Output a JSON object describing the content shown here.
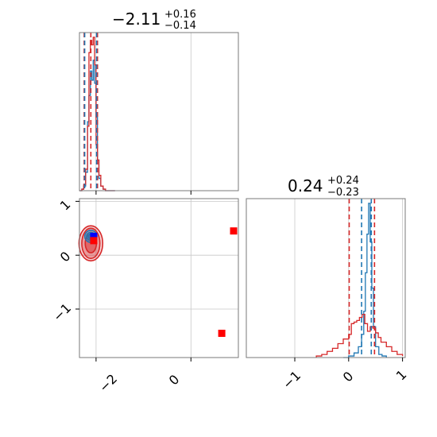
{
  "chart_data": [
    {
      "type": "corner-histogram",
      "panel": "param1-marginal",
      "title": {
        "median": "−2.11",
        "plus": "+0.16",
        "minus": "−0.14"
      },
      "xlim": [
        -2.35,
        1.0
      ],
      "grid": true,
      "series": [
        {
          "color": "#1f77b4",
          "style": "step",
          "x": [
            -2.35,
            -2.3,
            -2.26,
            -2.22,
            -2.18,
            -2.15,
            -2.12,
            -2.09,
            -2.06,
            -2.03,
            -2.0,
            -1.97,
            -1.94,
            -1.9,
            -1.85,
            -1.8,
            -1.6
          ],
          "density": [
            0,
            0.01,
            0.03,
            0.12,
            0.45,
            0.62,
            0.78,
            0.72,
            0.85,
            0.7,
            0.48,
            0.2,
            0.08,
            0.03,
            0.01,
            0,
            0
          ]
        },
        {
          "color": "#d62728",
          "style": "step",
          "x": [
            -2.35,
            -2.3,
            -2.26,
            -2.22,
            -2.18,
            -2.15,
            -2.12,
            -2.09,
            -2.06,
            -2.03,
            -2.0,
            -1.97,
            -1.94,
            -1.9,
            -1.85,
            -1.8,
            -1.6
          ],
          "density": [
            0,
            0.01,
            0.04,
            0.14,
            0.42,
            0.9,
            0.98,
            0.95,
            1.0,
            0.82,
            0.3,
            0.2,
            0.1,
            0.03,
            0.01,
            0,
            0
          ]
        }
      ],
      "quantile_lines": [
        {
          "x": -2.25,
          "color": "#d62728"
        },
        {
          "x": -2.11,
          "color": "#d62728"
        },
        {
          "x": -1.97,
          "color": "#d62728"
        },
        {
          "x": -2.24,
          "color": "#1f77b4"
        },
        {
          "x": -1.99,
          "color": "#1f77b4"
        }
      ]
    },
    {
      "type": "corner-2d-contour",
      "panel": "param1-vs-param2",
      "xlim": [
        -2.35,
        1.0
      ],
      "ylim": [
        -1.9,
        1.05
      ],
      "grid": true,
      "xticks": [
        "−2",
        "0"
      ],
      "xtick_values": [
        -2,
        0
      ],
      "yticks": [
        "1",
        "0",
        "−1"
      ],
      "ytick_values": [
        1,
        0,
        -1
      ],
      "contour_sets": [
        {
          "color": "#d62728",
          "cx": -2.11,
          "cy": 0.22,
          "rx": [
            0.55,
            0.42,
            0.26
          ],
          "ry": [
            0.52,
            0.45,
            0.28
          ],
          "fill_alpha": [
            0.35,
            0.6,
            0.85
          ]
        },
        {
          "color": "#1f77b4",
          "cx": -2.11,
          "cy": 0.35,
          "rx": [
            0.28,
            0.2,
            0.12
          ],
          "ry": [
            0.18,
            0.12,
            0.07
          ],
          "fill_alpha": [
            0.4,
            0.6,
            0.85
          ]
        }
      ],
      "points": [
        {
          "x": -2.05,
          "y": 0.35,
          "color": "#0000ff",
          "marker": "square"
        },
        {
          "x": -2.05,
          "y": 0.27,
          "color": "#ff0000",
          "marker": "square"
        },
        {
          "x": 0.65,
          "y": -1.45,
          "color": "#ff0000",
          "marker": "square"
        },
        {
          "x": 0.9,
          "y": 0.45,
          "color": "#ff0000",
          "marker": "square"
        }
      ]
    },
    {
      "type": "corner-histogram",
      "panel": "param2-marginal",
      "title": {
        "median": "0.24",
        "plus": "+0.24",
        "minus": "−0.23"
      },
      "xlim": [
        -1.9,
        1.05
      ],
      "grid": true,
      "xticks": [
        "−1",
        "0",
        "1"
      ],
      "xtick_values": [
        -1,
        0,
        1
      ],
      "series": [
        {
          "color": "#1f77b4",
          "style": "step",
          "x": [
            -0.1,
            0.0,
            0.1,
            0.18,
            0.24,
            0.28,
            0.31,
            0.34,
            0.37,
            0.4,
            0.43,
            0.46,
            0.5,
            0.56,
            0.62,
            0.7
          ],
          "density": [
            0,
            0.01,
            0.03,
            0.07,
            0.15,
            0.3,
            0.55,
            0.8,
            1.0,
            0.75,
            0.45,
            0.2,
            0.07,
            0.02,
            0.01,
            0
          ]
        },
        {
          "color": "#d62728",
          "style": "step",
          "x": [
            -0.6,
            -0.5,
            -0.4,
            -0.3,
            -0.2,
            -0.1,
            0.0,
            0.05,
            0.1,
            0.15,
            0.2,
            0.25,
            0.3,
            0.35,
            0.4,
            0.45,
            0.5,
            0.55,
            0.6,
            0.7,
            0.8,
            0.9,
            1.0
          ],
          "density": [
            0.01,
            0.02,
            0.04,
            0.06,
            0.09,
            0.12,
            0.15,
            0.22,
            0.23,
            0.24,
            0.26,
            0.28,
            0.22,
            0.17,
            0.2,
            0.19,
            0.16,
            0.13,
            0.1,
            0.07,
            0.04,
            0.02,
            0.01
          ]
        }
      ],
      "quantile_lines": [
        {
          "x": 0.01,
          "color": "#d62728"
        },
        {
          "x": 0.24,
          "color": "#1f77b4"
        },
        {
          "x": 0.42,
          "color": "#1f77b4"
        },
        {
          "x": 0.48,
          "color": "#d62728"
        }
      ]
    }
  ]
}
